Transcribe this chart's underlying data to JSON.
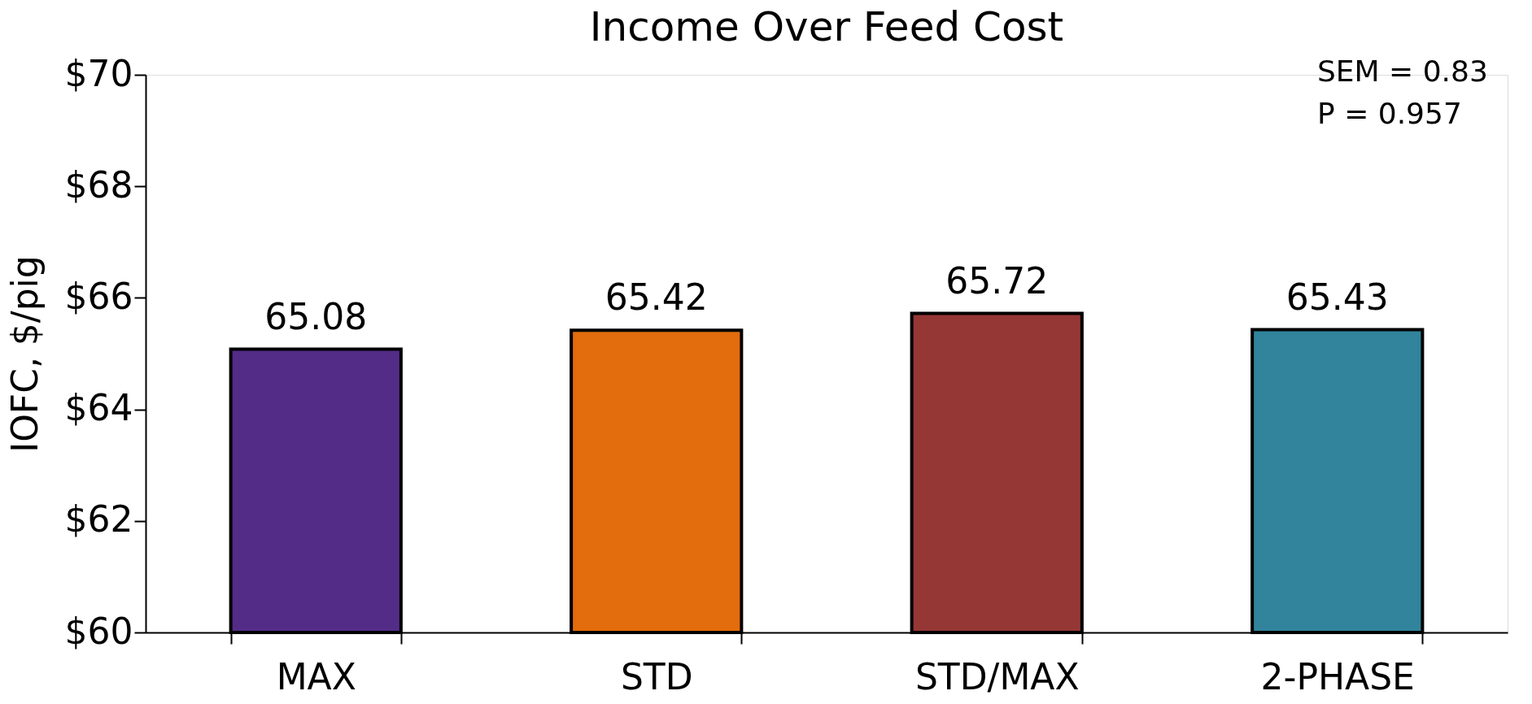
{
  "chart_data": {
    "type": "bar",
    "title": "Income Over Feed Cost",
    "ylabel": "IOFC, $/pig",
    "categories": [
      "MAX",
      "STD",
      "STD/MAX",
      "2-PHASE"
    ],
    "values": [
      65.08,
      65.42,
      65.72,
      65.43
    ],
    "colors": [
      "#532c87",
      "#e36c0c",
      "#953735",
      "#31849b"
    ],
    "ylim": [
      60,
      70
    ],
    "yticks": [
      {
        "value": 60,
        "label": "$60"
      },
      {
        "value": 62,
        "label": "$62"
      },
      {
        "value": 64,
        "label": "$64"
      },
      {
        "value": 66,
        "label": "$66"
      },
      {
        "value": 68,
        "label": "$68"
      },
      {
        "value": 70,
        "label": "$70"
      }
    ],
    "data_labels": true,
    "grid": false,
    "annotations": [
      "SEM = 0.83",
      "P = 0.957"
    ]
  }
}
